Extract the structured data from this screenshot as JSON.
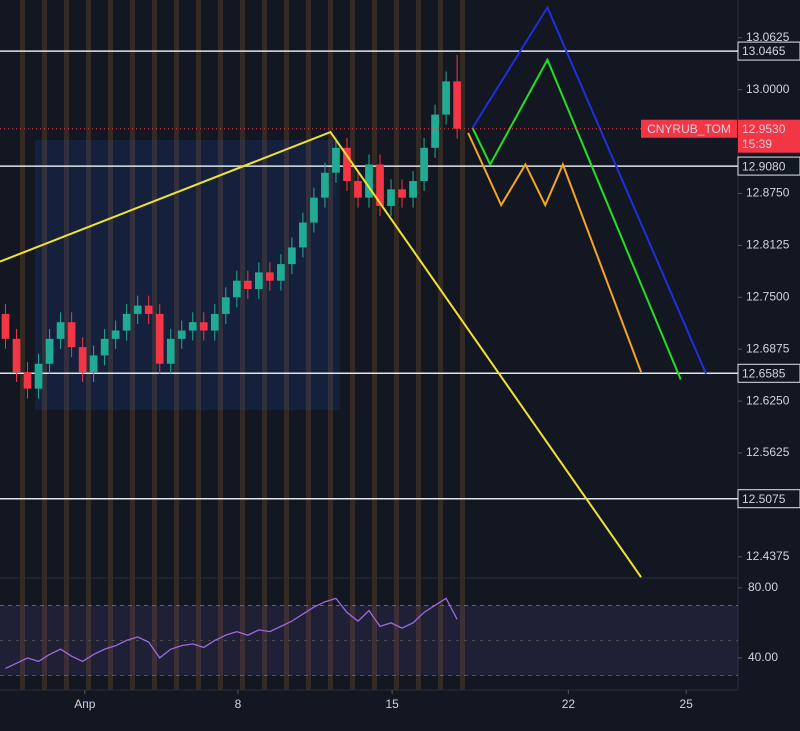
{
  "chart_data": {
    "type": "candlestick",
    "symbol": "CNYRUB_TOM",
    "countdown": "15:39",
    "x": [
      0.5,
      1.5,
      2.5,
      3.5,
      4.5,
      5.5,
      6.5,
      7.5,
      8.5,
      9.5,
      10.5,
      11.5,
      12.5,
      13.5,
      14.5,
      15.5,
      16.5,
      17.5,
      18.5,
      19.5,
      20.5,
      21.5,
      22.5,
      23.5,
      24.5,
      25.5,
      26.5,
      27.5,
      28.5,
      29.5,
      30.5,
      31.5,
      32.5,
      33.5,
      34.5,
      35.5,
      36.5,
      37.5,
      38.5,
      39.5,
      40.5,
      41.5
    ],
    "open": [
      12.73,
      12.7,
      12.66,
      12.64,
      12.67,
      12.7,
      12.72,
      12.69,
      12.66,
      12.68,
      12.7,
      12.71,
      12.73,
      12.74,
      12.73,
      12.67,
      12.7,
      12.71,
      12.72,
      12.71,
      12.73,
      12.75,
      12.77,
      12.76,
      12.78,
      12.77,
      12.79,
      12.81,
      12.84,
      12.87,
      12.9,
      12.93,
      12.89,
      12.87,
      12.91,
      12.86,
      12.88,
      12.87,
      12.89,
      12.93,
      12.97,
      13.01
    ],
    "high": [
      12.742,
      12.712,
      12.672,
      12.682,
      12.712,
      12.732,
      12.732,
      12.702,
      12.692,
      12.712,
      12.722,
      12.742,
      12.752,
      12.752,
      12.742,
      12.712,
      12.722,
      12.732,
      12.732,
      12.742,
      12.762,
      12.782,
      12.782,
      12.792,
      12.792,
      12.802,
      12.822,
      12.852,
      12.882,
      12.912,
      12.942,
      12.942,
      12.902,
      12.922,
      12.922,
      12.892,
      12.892,
      12.902,
      12.942,
      12.982,
      13.022,
      13.042
    ],
    "low": [
      12.688,
      12.648,
      12.628,
      12.628,
      12.658,
      12.688,
      12.678,
      12.648,
      12.648,
      12.668,
      12.688,
      12.698,
      12.718,
      12.718,
      12.658,
      12.658,
      12.688,
      12.698,
      12.698,
      12.698,
      12.718,
      12.738,
      12.748,
      12.748,
      12.758,
      12.758,
      12.778,
      12.798,
      12.828,
      12.858,
      12.888,
      12.878,
      12.858,
      12.858,
      12.848,
      12.848,
      12.858,
      12.858,
      12.878,
      12.918,
      12.958,
      12.941
    ],
    "close": [
      12.7,
      12.66,
      12.64,
      12.67,
      12.7,
      12.72,
      12.69,
      12.66,
      12.68,
      12.7,
      12.71,
      12.73,
      12.74,
      12.73,
      12.67,
      12.7,
      12.71,
      12.72,
      12.71,
      12.73,
      12.75,
      12.77,
      12.76,
      12.78,
      12.77,
      12.79,
      12.81,
      12.84,
      12.87,
      12.9,
      12.93,
      12.89,
      12.87,
      12.91,
      12.86,
      12.88,
      12.87,
      12.89,
      12.93,
      12.97,
      13.01,
      12.953
    ],
    "up_color": "#22ab94",
    "down_color": "#f23645",
    "xlim": [
      0,
      67
    ],
    "xticks": [
      {
        "value": 7.7,
        "label": "Апр"
      },
      {
        "value": 21.6,
        "label": "8"
      },
      {
        "value": 35.6,
        "label": "15"
      },
      {
        "value": 51.6,
        "label": "22"
      },
      {
        "value": 62.3,
        "label": "25"
      }
    ],
    "ylim": [
      12.412,
      13.108
    ],
    "yticks": [
      13.0625,
      {
        "value": 13.0,
        "label": "13.0000"
      },
      {
        "value": 12.875,
        "label": "12.8750"
      },
      12.8125,
      {
        "value": 12.75,
        "label": "12.7500"
      },
      12.6875,
      {
        "value": 12.625,
        "label": "12.6250"
      },
      12.5625,
      12.4375
    ],
    "levels": [
      13.0465,
      {
        "value": 12.908,
        "label": "12.9080"
      },
      12.6585,
      12.5075
    ],
    "last_price": {
      "value": 12.953,
      "label": "12.9530"
    },
    "drawings": [
      {
        "color": "#f2e330",
        "x": [
          0,
          30,
          58.2
        ],
        "y": [
          12.793,
          12.949,
          12.413
        ]
      },
      {
        "color": "#1e2fdc",
        "x": [
          42.9,
          49.7,
          64.1
        ],
        "y": [
          12.954,
          13.099,
          12.658
        ]
      },
      {
        "color": "#22e022",
        "x": [
          42.9,
          44.5,
          49.7,
          61.8
        ],
        "y": [
          12.954,
          12.91,
          13.036,
          12.651
        ]
      },
      {
        "color": "#f5a623",
        "x": [
          42.5,
          45.5,
          47.7,
          49.5,
          51.1,
          58.2
        ],
        "y": [
          12.948,
          12.861,
          12.91,
          12.861,
          12.91,
          12.66
        ]
      }
    ],
    "rsi": {
      "color": "#9c6ade",
      "ylim": [
        21.7,
        85.6
      ],
      "yticks": [
        {
          "value": 80,
          "label": "80.00"
        },
        {
          "value": 40,
          "label": "40.00"
        }
      ],
      "bands": [
        70,
        30
      ],
      "midline": 50,
      "values": [
        34,
        37,
        40,
        38,
        42,
        45,
        41,
        38,
        42,
        45,
        47,
        50,
        52,
        49,
        40,
        45,
        47,
        48,
        46,
        50,
        53,
        55,
        53,
        56,
        55,
        58,
        61,
        65,
        69,
        72,
        74,
        66,
        61,
        67,
        58,
        60,
        57,
        60,
        66,
        70,
        74,
        62
      ]
    }
  }
}
